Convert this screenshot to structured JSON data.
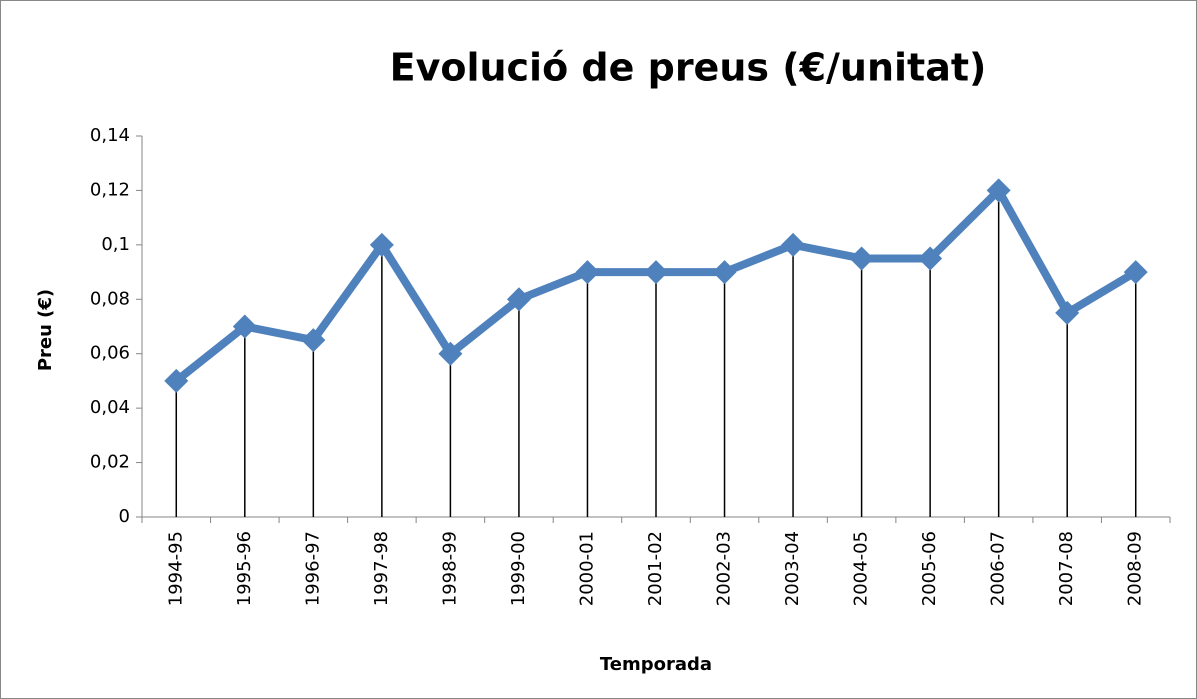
{
  "chart_data": {
    "type": "line",
    "title": "Evolució de preus (€/unitat)",
    "x_label": "Temporada",
    "y_label": "Preu (€)",
    "categories": [
      "1994-95",
      "1995-96",
      "1996-97",
      "1997-98",
      "1998-99",
      "1999-00",
      "2000-01",
      "2001-02",
      "2002-03",
      "2003-04",
      "2004-05",
      "2005-06",
      "2006-07",
      "2007-08",
      "2008-09"
    ],
    "values": [
      0.05,
      0.07,
      0.065,
      0.1,
      0.06,
      0.08,
      0.09,
      0.09,
      0.09,
      0.1,
      0.095,
      0.095,
      0.12,
      0.075,
      0.09
    ],
    "color": "#4f81bd",
    "drop_line_color": "#000000",
    "ylim": [
      0,
      0.14
    ],
    "yticks": [
      0,
      {
        "value": 0.02,
        "label": "0,02"
      },
      {
        "value": 0.04,
        "label": "0,04"
      },
      {
        "value": 0.06,
        "label": "0,06"
      },
      {
        "value": 0.08,
        "label": "0,08"
      },
      {
        "value": 0.1,
        "label": "0,1"
      },
      {
        "value": 0.12,
        "label": "0,12"
      },
      {
        "value": 0.14,
        "label": "0,14"
      }
    ],
    "grid": false
  }
}
